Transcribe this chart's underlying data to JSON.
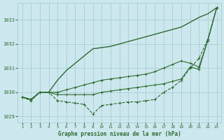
{
  "x": [
    1,
    2,
    3,
    4,
    5,
    6,
    7,
    8,
    9,
    10,
    11,
    12,
    13,
    14,
    15,
    16,
    17,
    18,
    19,
    20,
    21,
    22,
    23
  ],
  "line_steep": [
    1029.8,
    1029.7,
    1030.0,
    1030.0,
    1030.5,
    1030.9,
    1031.2,
    1031.5,
    1031.8,
    1031.85,
    1031.9,
    1032.0,
    1032.1,
    1032.2,
    1032.3,
    1032.4,
    1032.5,
    1032.6,
    1032.7,
    1032.9,
    1033.1,
    1033.25,
    1033.5
  ],
  "line_mid_upper": [
    1029.8,
    1029.7,
    1030.0,
    1030.0,
    1030.0,
    1030.1,
    1030.2,
    1030.3,
    1030.4,
    1030.5,
    1030.55,
    1030.6,
    1030.65,
    1030.7,
    1030.75,
    1030.85,
    1031.0,
    1031.15,
    1031.3,
    1031.2,
    1031.05,
    1032.15,
    1033.5
  ],
  "line_mid_lower": [
    1029.8,
    1029.7,
    1030.0,
    1030.0,
    1029.9,
    1029.9,
    1029.9,
    1029.9,
    1029.9,
    1030.0,
    1030.05,
    1030.1,
    1030.15,
    1030.2,
    1030.25,
    1030.3,
    1030.35,
    1030.45,
    1030.55,
    1031.05,
    1030.95,
    1032.15,
    1033.5
  ],
  "line_bottom": [
    1029.8,
    1029.65,
    1030.0,
    1030.0,
    1029.65,
    1029.6,
    1029.55,
    1029.5,
    1029.1,
    1029.45,
    1029.5,
    1029.55,
    1029.6,
    1029.6,
    1029.65,
    1029.7,
    1030.0,
    1030.2,
    1030.5,
    1031.0,
    1031.4,
    1032.2,
    1033.5
  ],
  "line_color": "#2d6a2d",
  "marker": "+",
  "markersize": 3,
  "lw_steep": 1.0,
  "lw_others": 0.8,
  "bg_color": "#cce8ee",
  "grid_color": "#a0c8cc",
  "xlabel": "Graphe pression niveau de la mer (hPa)",
  "xlabel_color": "#2d6a2d",
  "tick_color": "#2d6a2d",
  "ylim": [
    1028.75,
    1033.7
  ],
  "yticks": [
    1029,
    1030,
    1031,
    1032,
    1033
  ],
  "xticks": [
    1,
    2,
    3,
    4,
    5,
    6,
    7,
    8,
    9,
    10,
    11,
    12,
    13,
    14,
    15,
    16,
    17,
    18,
    19,
    20,
    21,
    22,
    23
  ]
}
